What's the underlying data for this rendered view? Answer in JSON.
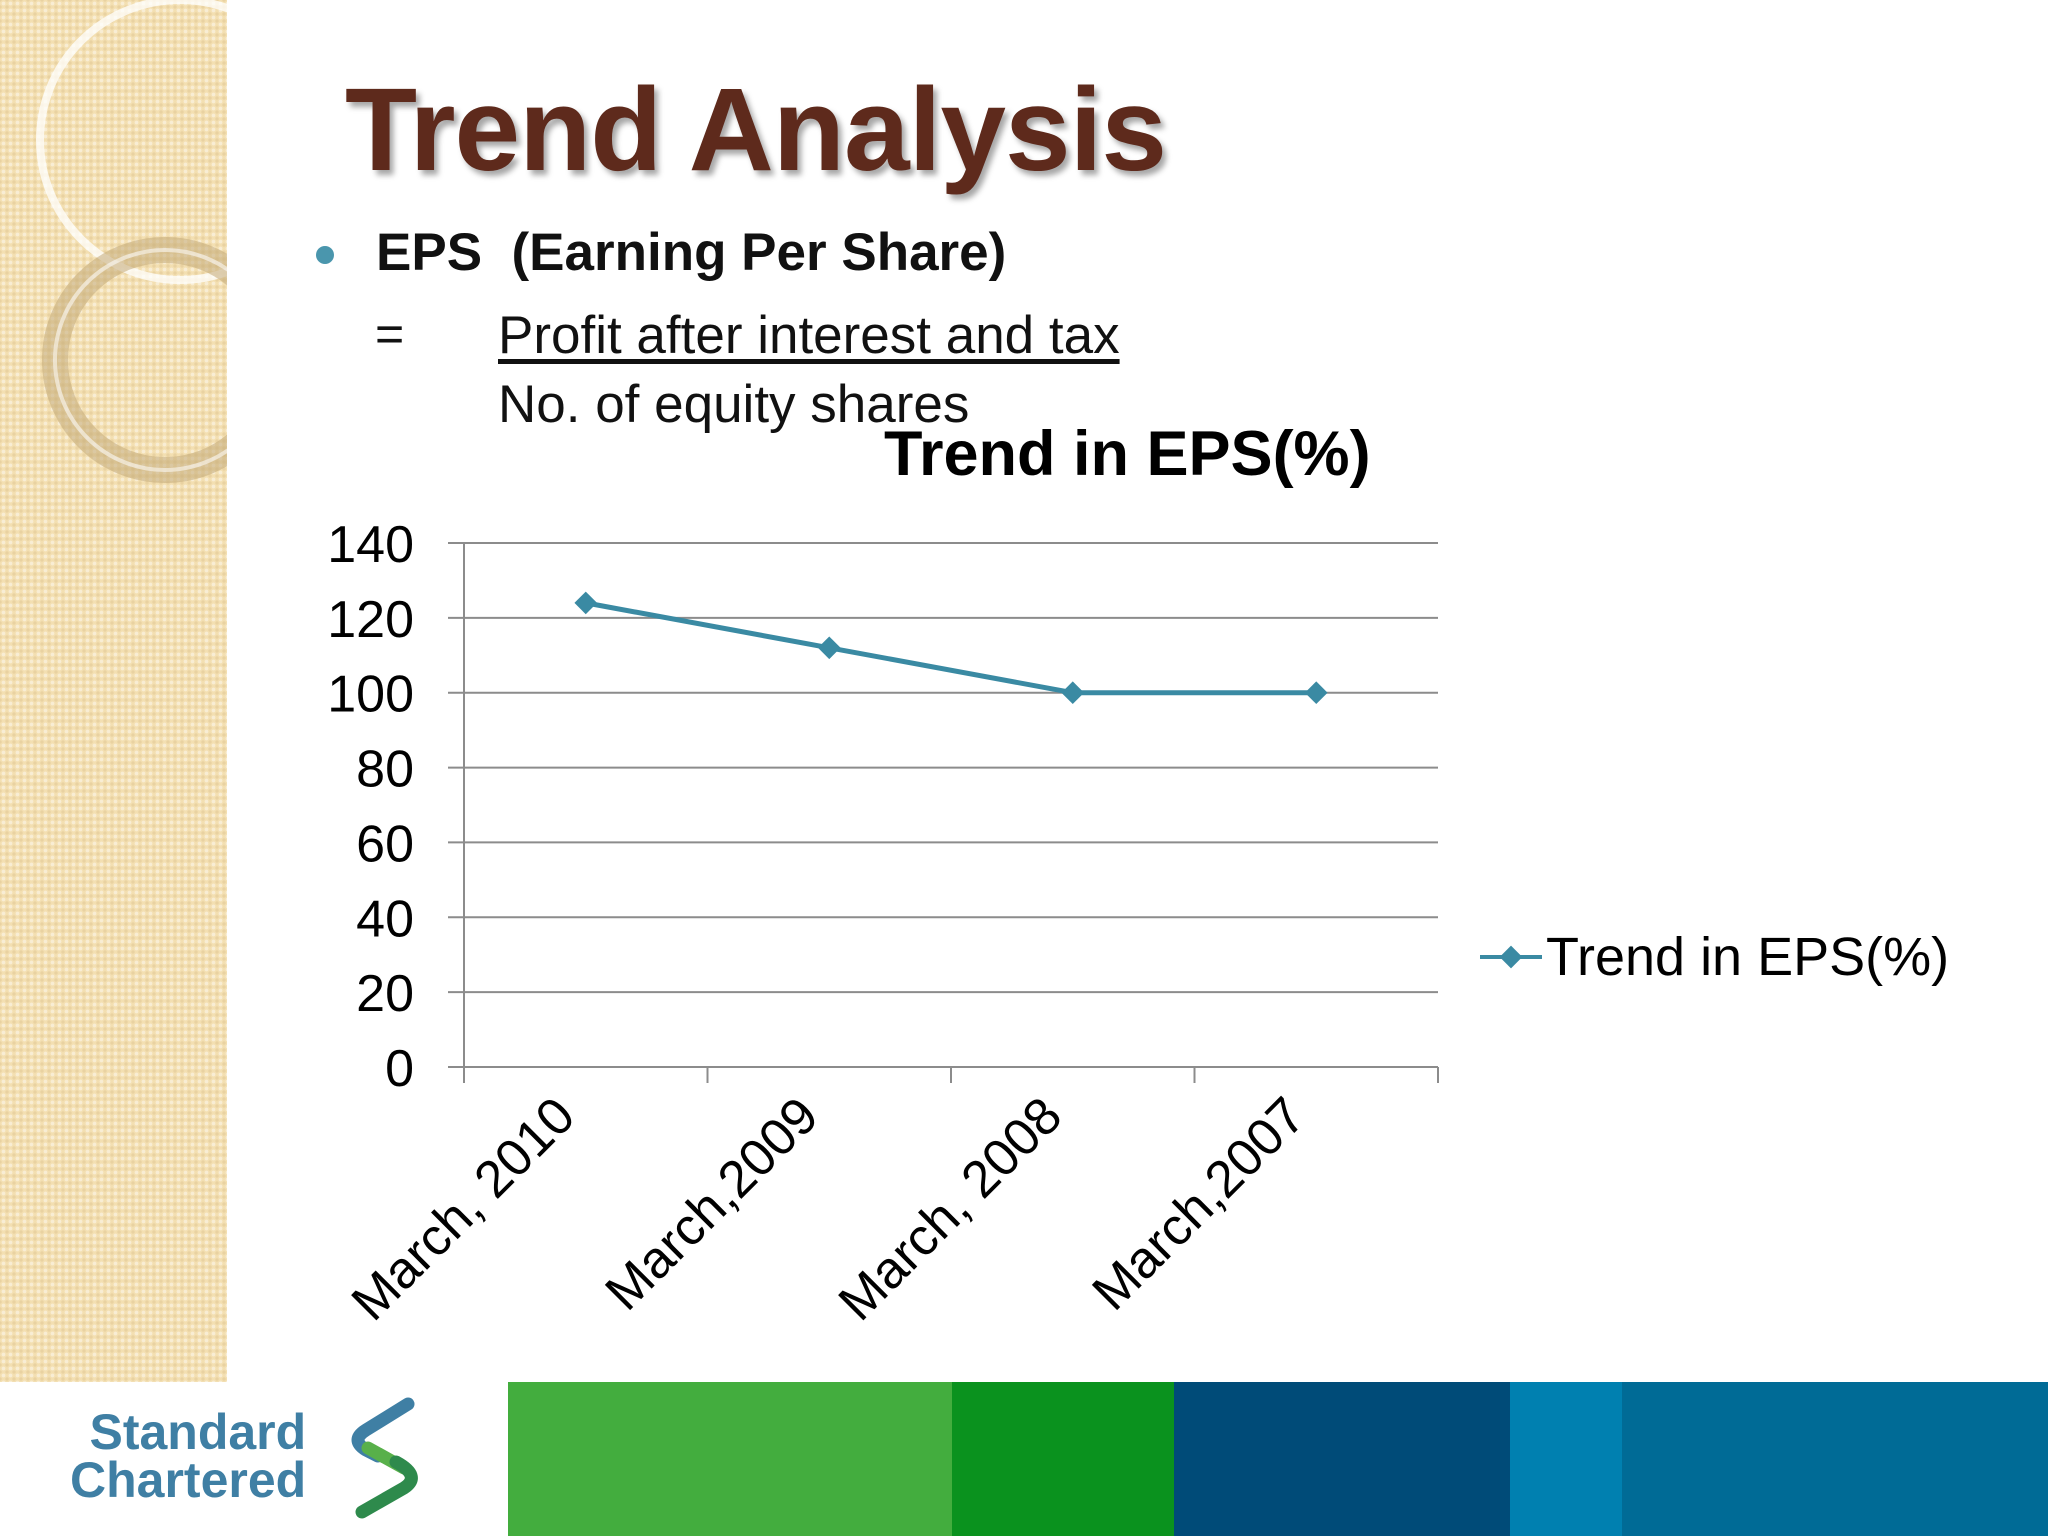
{
  "slide": {
    "title": "Trend Analysis",
    "bullet": "EPS  (Earning Per Share)",
    "equals": "=",
    "formula_numerator": "Profit after interest and tax",
    "formula_denominator": "No. of equity shares"
  },
  "brand": {
    "logo_line1": "Standard",
    "logo_line2": "Chartered",
    "colors": [
      "#43ad3e",
      "#0a921e",
      "#004b78",
      "#0080b0",
      "#006b96"
    ]
  },
  "chart_data": {
    "type": "line",
    "title": "Trend in EPS(%)",
    "categories": [
      "March, 2010",
      "March,2009",
      "March, 2008",
      "March,2007"
    ],
    "series": [
      {
        "name": "Trend in EPS(%)",
        "values": [
          124,
          112,
          100,
          100
        ],
        "color": "#3a8aa3"
      }
    ],
    "ylim": [
      0,
      140
    ],
    "yticks": [
      0,
      20,
      40,
      60,
      80,
      100,
      120,
      140
    ],
    "grid": true,
    "legend_position": "right",
    "xlabel": "",
    "ylabel": ""
  }
}
